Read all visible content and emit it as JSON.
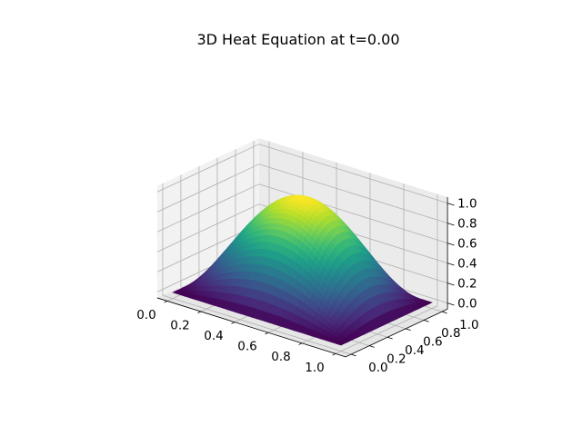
{
  "chart_data": {
    "type": "surface3d",
    "title": "3D Heat Equation at t=0.00",
    "xlabel": "",
    "ylabel": "",
    "zlabel": "",
    "x_ticks": [
      "0.0",
      "0.2",
      "0.4",
      "0.6",
      "0.8",
      "1.0"
    ],
    "y_ticks": [
      "0.0",
      "0.2",
      "0.4",
      "0.6",
      "0.8",
      "1.0"
    ],
    "z_ticks": [
      "0.0",
      "0.2",
      "0.4",
      "0.6",
      "0.8",
      "1.0"
    ],
    "xlim": [
      0,
      1
    ],
    "ylim": [
      0,
      1
    ],
    "zlim": [
      0,
      1
    ],
    "function": "u(x,y) = sin(pi*x) * sin(pi*y)",
    "peak": {
      "x": 0.5,
      "y": 0.5,
      "z": 1.0
    },
    "boundary_value": 0.0,
    "colormap": "viridis",
    "colormap_stops": [
      "#440154",
      "#482878",
      "#3e4989",
      "#31688e",
      "#26828e",
      "#1f9e89",
      "#35b779",
      "#6ece58",
      "#b5de2b",
      "#fde725"
    ],
    "grid": true
  }
}
